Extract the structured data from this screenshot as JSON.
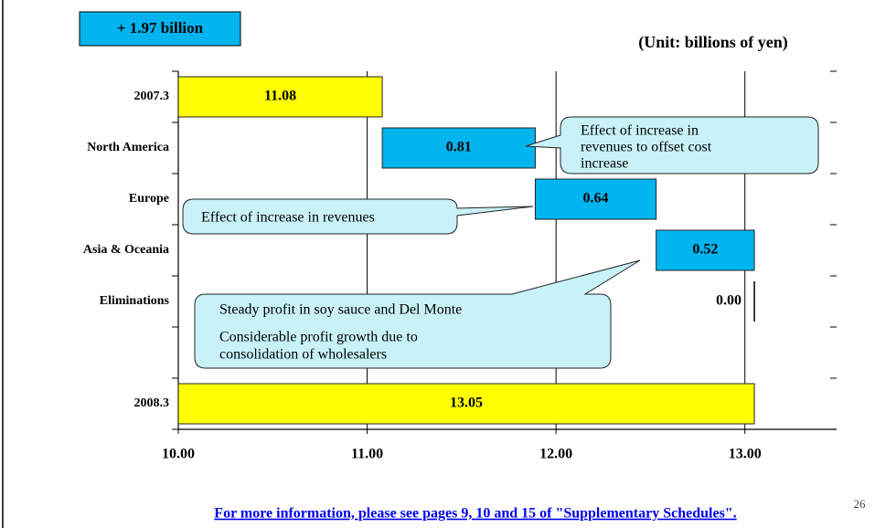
{
  "chart_data": {
    "type": "waterfall",
    "badge": "+ 1.97 billion",
    "unit_label": "(Unit: billions of yen)",
    "categories": [
      "2007.3",
      "North America",
      "Europe",
      "Asia & Oceania",
      "Eliminations",
      null,
      "2008.3"
    ],
    "values": [
      11.08,
      0.81,
      0.64,
      0.52,
      0.0,
      null,
      13.05
    ],
    "value_labels": [
      "11.08",
      "0.81",
      "0.64",
      "0.52",
      "0.00",
      null,
      "13.05"
    ],
    "measure": [
      "absolute",
      "relative",
      "relative",
      "relative",
      "relative",
      null,
      "absolute"
    ],
    "colors": {
      "absolute": "#ffff00",
      "relative": "#00b4ef"
    },
    "xlim": [
      10,
      13.5
    ],
    "xticks": [
      {
        "value": 10,
        "label": "10.00"
      },
      {
        "value": 11,
        "label": "11.00"
      },
      {
        "value": 12,
        "label": "12.00"
      },
      {
        "value": 13,
        "label": "13.00"
      }
    ],
    "grid": true,
    "annotations": [
      {
        "lines": [
          "Effect of increase in",
          "revenues to offset cost",
          "increase"
        ]
      },
      {
        "lines": [
          "Effect of increase in revenues"
        ]
      },
      {
        "lines": [
          "Steady profit in soy sauce and Del Monte",
          "Considerable profit growth due to",
          "consolidation of wholesalers"
        ]
      }
    ],
    "footnote": "For more information, please see pages 9, 10 and 15 of \"Supplementary Schedules\".",
    "page_number": "26"
  }
}
